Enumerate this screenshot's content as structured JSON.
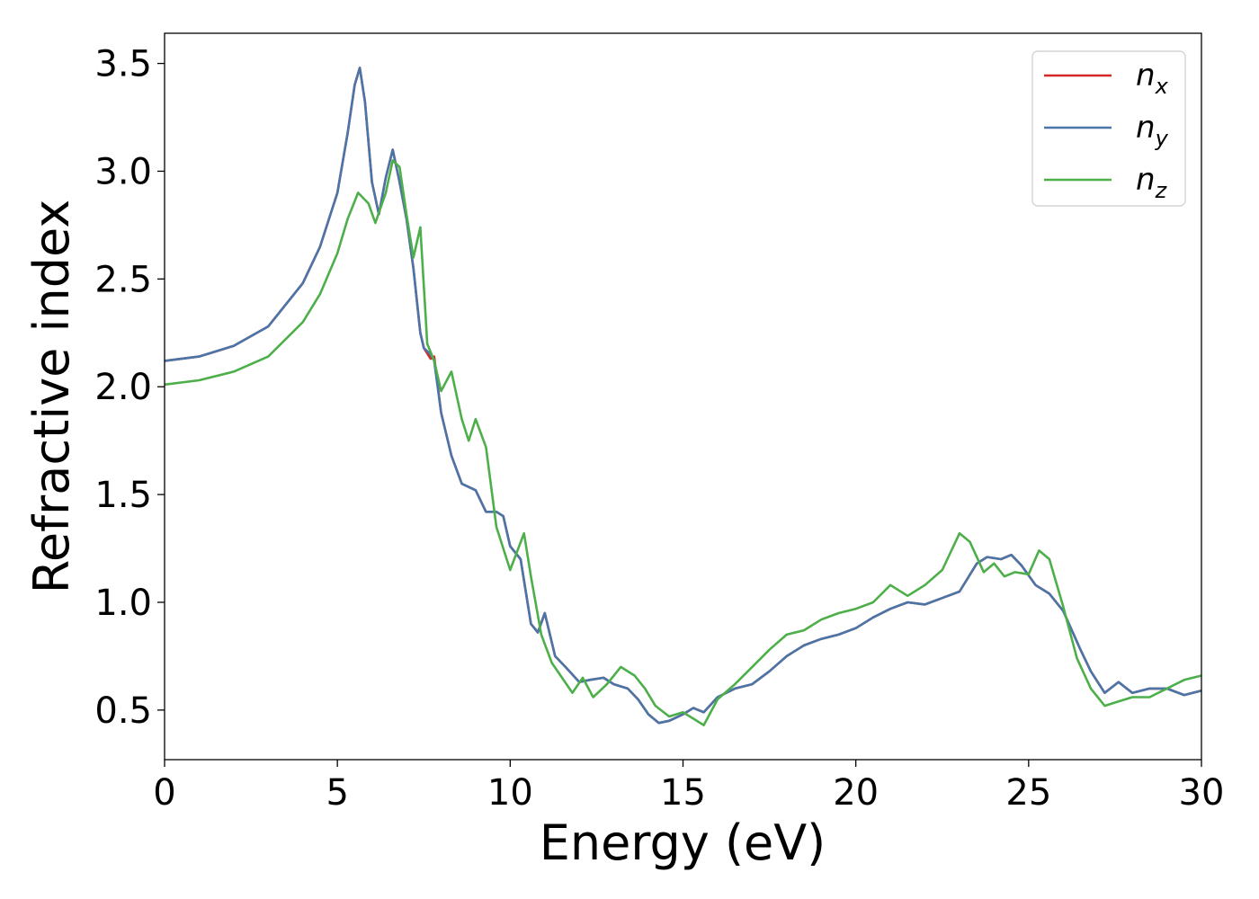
{
  "chart_data": {
    "type": "line",
    "xlabel": "Energy (eV)",
    "ylabel": "Refractive index",
    "xlim": [
      0,
      30
    ],
    "ylim": [
      0.27,
      3.64
    ],
    "xticks": [
      "0",
      "5",
      "10",
      "15",
      "20",
      "25",
      "30"
    ],
    "yticks": [
      "0.5",
      "1.0",
      "1.5",
      "2.0",
      "2.5",
      "3.0",
      "3.5"
    ],
    "grid": false,
    "legend_position": "top-right",
    "series": [
      {
        "name": "n",
        "sub": "x",
        "color": "#d62728",
        "x": [
          0,
          1,
          2,
          3,
          4,
          4.5,
          5,
          5.3,
          5.5,
          5.65,
          5.8,
          6.0,
          6.2,
          6.4,
          6.6,
          6.8,
          7.0,
          7.2,
          7.4,
          7.5,
          7.7,
          7.8,
          8.0,
          8.3,
          8.6,
          9.0,
          9.3,
          9.6,
          9.8,
          10.0,
          10.3,
          10.6,
          10.8,
          11.0,
          11.3,
          11.6,
          12.0,
          12.3,
          12.7,
          13.0,
          13.4,
          13.7,
          14.0,
          14.3,
          14.6,
          15.0,
          15.3,
          15.6,
          16.0,
          16.5,
          17.0,
          17.5,
          18.0,
          18.5,
          19.0,
          19.5,
          20.0,
          20.5,
          21.0,
          21.5,
          22.0,
          22.5,
          23.0,
          23.5,
          23.8,
          24.2,
          24.5,
          24.8,
          25.2,
          25.6,
          26.0,
          26.5,
          26.8,
          27.2,
          27.6,
          28.0,
          28.5,
          29.0,
          29.5,
          30.0
        ],
        "y": [
          2.12,
          2.14,
          2.19,
          2.28,
          2.48,
          2.65,
          2.9,
          3.18,
          3.4,
          3.48,
          3.32,
          2.95,
          2.8,
          2.97,
          3.1,
          2.95,
          2.78,
          2.55,
          2.25,
          2.18,
          2.13,
          2.14,
          1.88,
          1.68,
          1.55,
          1.52,
          1.42,
          1.42,
          1.4,
          1.26,
          1.2,
          0.9,
          0.86,
          0.95,
          0.75,
          0.7,
          0.63,
          0.64,
          0.65,
          0.62,
          0.6,
          0.55,
          0.48,
          0.44,
          0.45,
          0.48,
          0.51,
          0.49,
          0.56,
          0.6,
          0.62,
          0.68,
          0.75,
          0.8,
          0.83,
          0.85,
          0.88,
          0.93,
          0.97,
          1.0,
          0.99,
          1.02,
          1.05,
          1.18,
          1.21,
          1.2,
          1.22,
          1.17,
          1.08,
          1.04,
          0.96,
          0.78,
          0.68,
          0.58,
          0.63,
          0.58,
          0.6,
          0.6,
          0.57,
          0.59
        ]
      },
      {
        "name": "n",
        "sub": "y",
        "color": "#4a75a8",
        "x": [
          0,
          1,
          2,
          3,
          4,
          4.5,
          5,
          5.3,
          5.5,
          5.65,
          5.8,
          6.0,
          6.2,
          6.4,
          6.6,
          6.8,
          7.0,
          7.2,
          7.4,
          7.5,
          7.7,
          7.8,
          8.0,
          8.3,
          8.6,
          9.0,
          9.3,
          9.6,
          9.8,
          10.0,
          10.3,
          10.6,
          10.8,
          11.0,
          11.3,
          11.6,
          12.0,
          12.3,
          12.7,
          13.0,
          13.4,
          13.7,
          14.0,
          14.3,
          14.6,
          15.0,
          15.3,
          15.6,
          16.0,
          16.5,
          17.0,
          17.5,
          18.0,
          18.5,
          19.0,
          19.5,
          20.0,
          20.5,
          21.0,
          21.5,
          22.0,
          22.5,
          23.0,
          23.5,
          23.8,
          24.2,
          24.5,
          24.8,
          25.2,
          25.6,
          26.0,
          26.5,
          26.8,
          27.2,
          27.6,
          28.0,
          28.5,
          29.0,
          29.5,
          30.0
        ],
        "y": [
          2.12,
          2.14,
          2.19,
          2.28,
          2.48,
          2.65,
          2.9,
          3.18,
          3.4,
          3.48,
          3.32,
          2.95,
          2.8,
          2.97,
          3.1,
          2.95,
          2.78,
          2.55,
          2.25,
          2.18,
          2.15,
          2.12,
          1.88,
          1.68,
          1.55,
          1.52,
          1.42,
          1.42,
          1.4,
          1.26,
          1.2,
          0.9,
          0.86,
          0.95,
          0.75,
          0.7,
          0.63,
          0.64,
          0.65,
          0.62,
          0.6,
          0.55,
          0.48,
          0.44,
          0.45,
          0.48,
          0.51,
          0.49,
          0.56,
          0.6,
          0.62,
          0.68,
          0.75,
          0.8,
          0.83,
          0.85,
          0.88,
          0.93,
          0.97,
          1.0,
          0.99,
          1.02,
          1.05,
          1.18,
          1.21,
          1.2,
          1.22,
          1.17,
          1.08,
          1.04,
          0.96,
          0.78,
          0.68,
          0.58,
          0.63,
          0.58,
          0.6,
          0.6,
          0.57,
          0.59
        ]
      },
      {
        "name": "n",
        "sub": "z",
        "color": "#4daf4a",
        "x": [
          0,
          1,
          2,
          3,
          4,
          4.5,
          5,
          5.3,
          5.6,
          5.9,
          6.1,
          6.4,
          6.6,
          6.8,
          7.0,
          7.2,
          7.4,
          7.6,
          7.8,
          8.0,
          8.3,
          8.6,
          8.8,
          9.0,
          9.3,
          9.6,
          10.0,
          10.4,
          10.6,
          10.9,
          11.2,
          11.5,
          11.8,
          12.1,
          12.4,
          12.8,
          13.2,
          13.6,
          13.9,
          14.2,
          14.6,
          15.0,
          15.3,
          15.6,
          16.0,
          16.5,
          17.0,
          17.5,
          18.0,
          18.5,
          19.0,
          19.5,
          20.0,
          20.5,
          21.0,
          21.5,
          22.0,
          22.5,
          23.0,
          23.3,
          23.7,
          24.0,
          24.3,
          24.6,
          25.0,
          25.3,
          25.6,
          26.0,
          26.4,
          26.8,
          27.2,
          27.6,
          28.0,
          28.5,
          29.0,
          29.5,
          30.0
        ],
        "y": [
          2.01,
          2.03,
          2.07,
          2.14,
          2.3,
          2.43,
          2.62,
          2.78,
          2.9,
          2.85,
          2.76,
          2.9,
          3.05,
          3.02,
          2.8,
          2.6,
          2.74,
          2.2,
          2.12,
          1.98,
          2.07,
          1.85,
          1.75,
          1.85,
          1.72,
          1.35,
          1.15,
          1.32,
          1.12,
          0.85,
          0.72,
          0.65,
          0.58,
          0.65,
          0.56,
          0.62,
          0.7,
          0.66,
          0.6,
          0.52,
          0.47,
          0.49,
          0.46,
          0.43,
          0.55,
          0.62,
          0.7,
          0.78,
          0.85,
          0.87,
          0.92,
          0.95,
          0.97,
          1.0,
          1.08,
          1.03,
          1.08,
          1.15,
          1.32,
          1.28,
          1.14,
          1.18,
          1.12,
          1.14,
          1.13,
          1.24,
          1.2,
          0.98,
          0.74,
          0.6,
          0.52,
          0.54,
          0.56,
          0.56,
          0.6,
          0.64,
          0.66
        ]
      }
    ]
  }
}
